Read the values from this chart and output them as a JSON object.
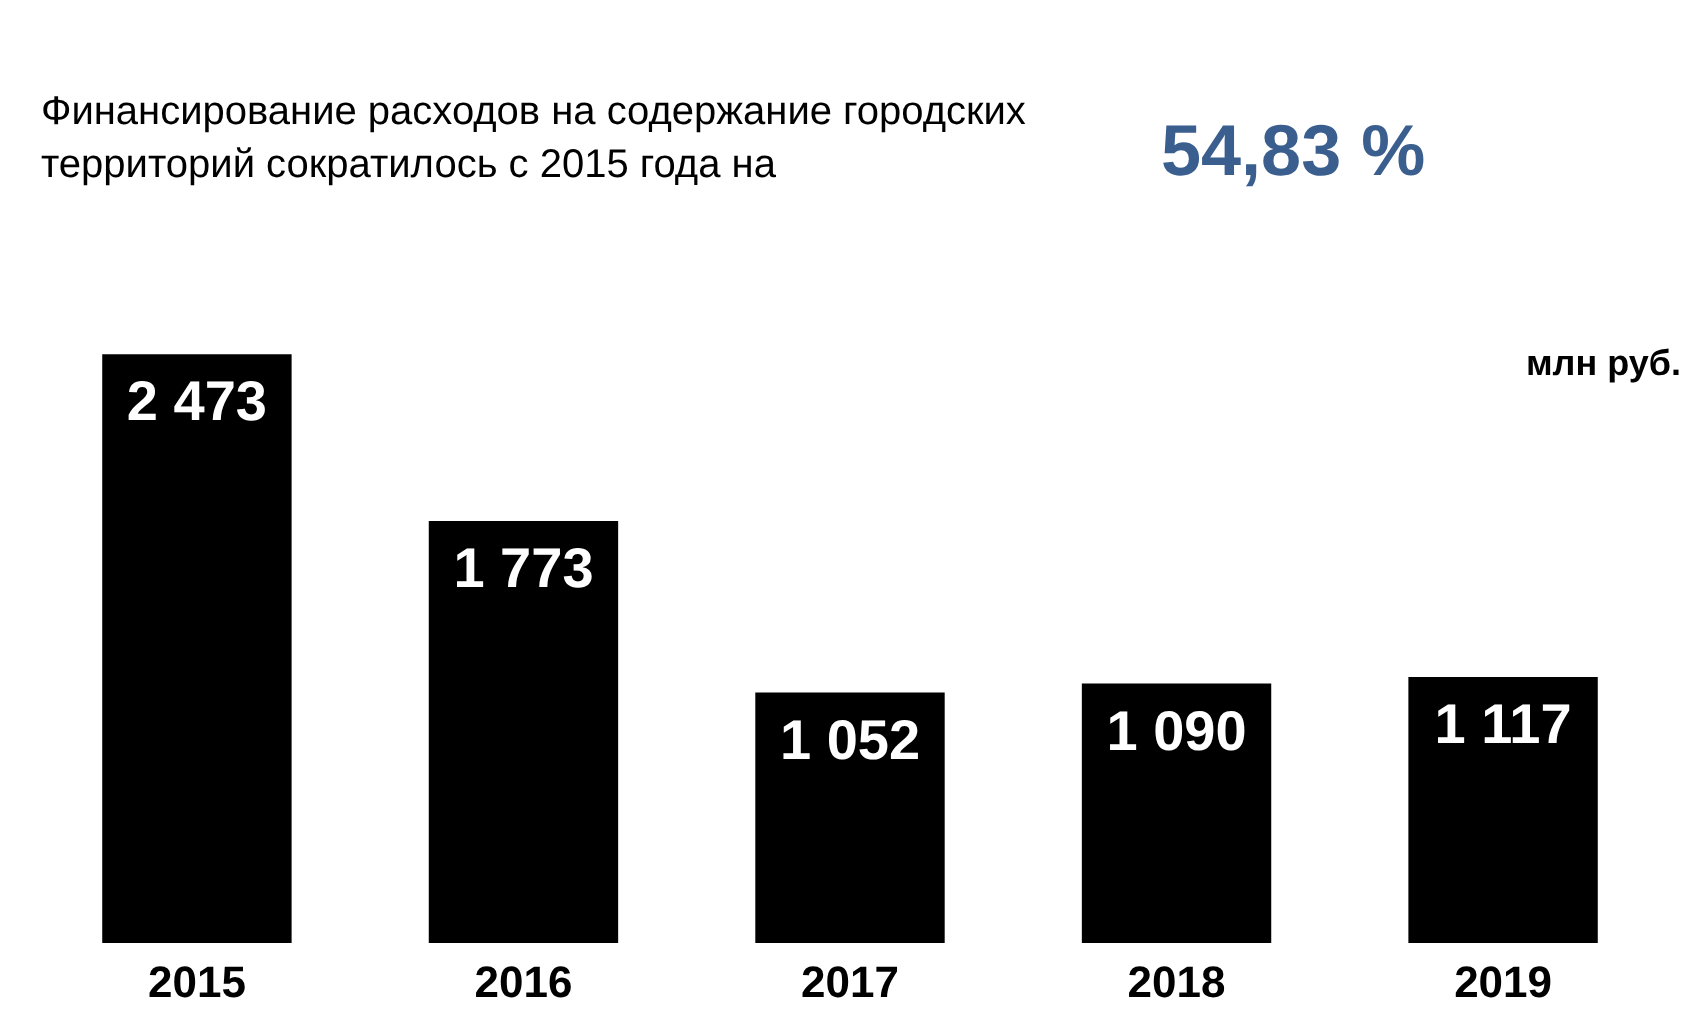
{
  "chart_data": {
    "type": "bar",
    "title": "Финансирование расходов на содержание городских территорий сократилось с 2015 года на",
    "annotations": [
      "54,83 %",
      "млн руб."
    ],
    "categories": [
      "2015",
      "2016",
      "2017",
      "2018",
      "2019"
    ],
    "values": [
      2473,
      1773,
      1052,
      1090,
      1117
    ],
    "color": "#000000",
    "data_labels": true,
    "value_labels": [
      "2 473",
      "1 773",
      "1 052",
      "1 090",
      "1 117"
    ]
  }
}
